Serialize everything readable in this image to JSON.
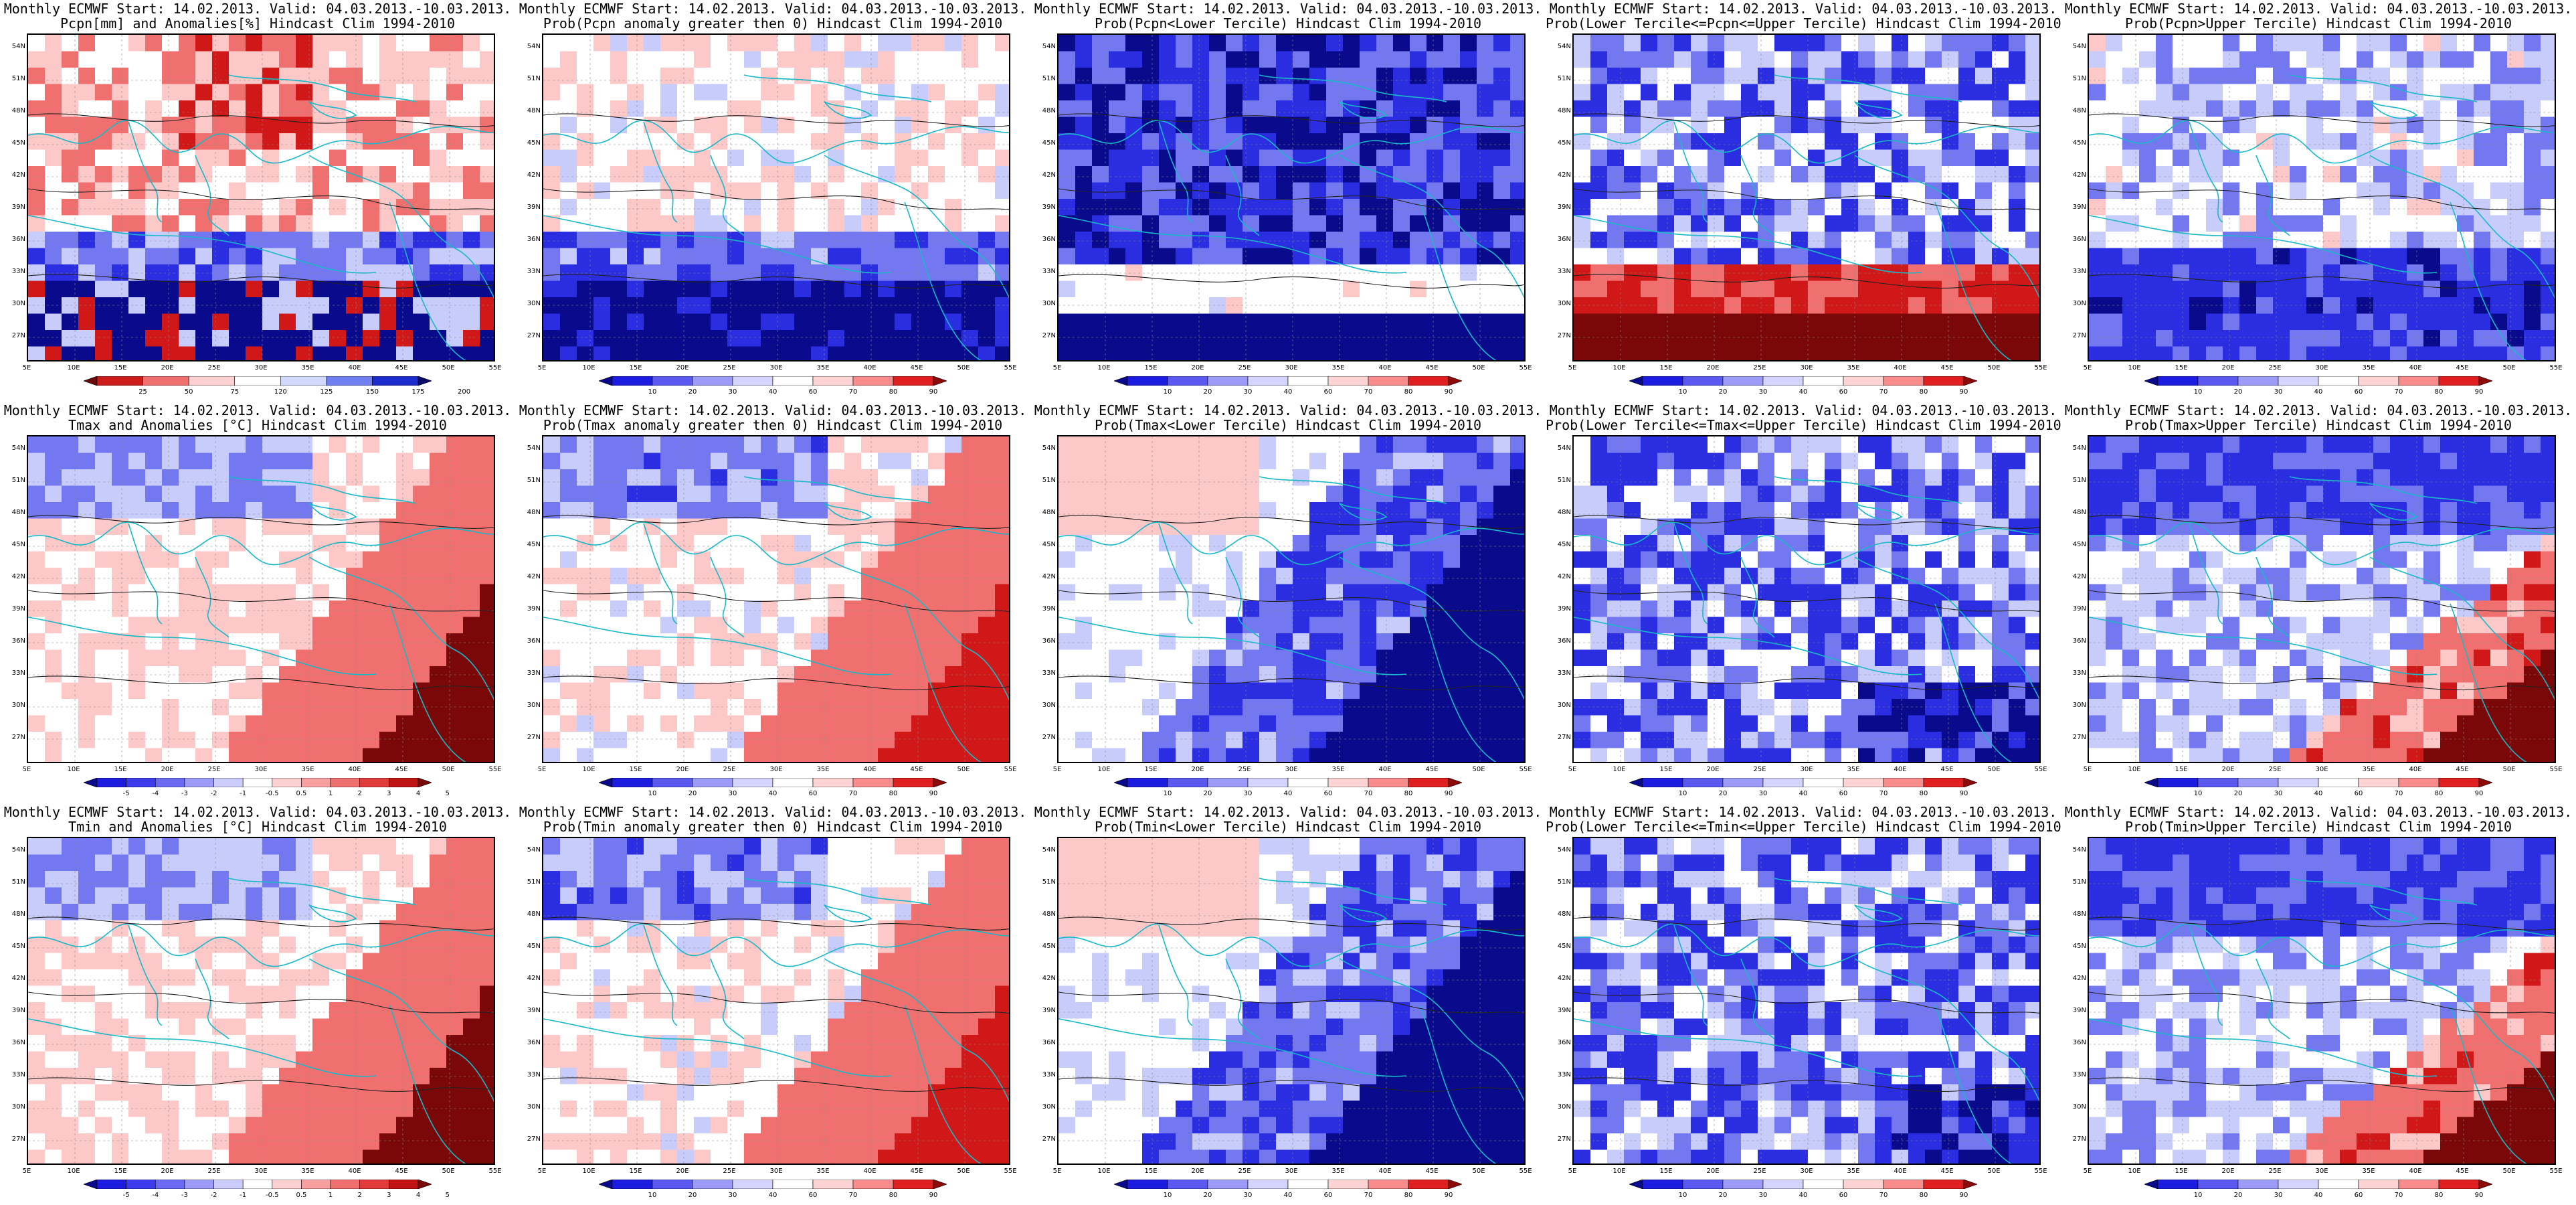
{
  "latitudes": [
    "54N",
    "51N",
    "48N",
    "45N",
    "42N",
    "39N",
    "36N",
    "33N",
    "30N",
    "27N"
  ],
  "longitudes": [
    "5E",
    "10E",
    "15E",
    "20E",
    "25E",
    "30E",
    "35E",
    "40E",
    "45E",
    "50E",
    "55E"
  ],
  "colorbars": {
    "pcpn_anom": {
      "labels": [
        "25",
        "50",
        "75",
        "120",
        "125",
        "150",
        "175",
        "200"
      ],
      "colors": [
        "#6b0a0a",
        "#cc1c1c",
        "#f07070",
        "#fcd0d0",
        "#ffffff",
        "#d0d8fc",
        "#7080f0",
        "#1c2ccc",
        "#0a0a6b"
      ]
    },
    "prob": {
      "labels": [
        "10",
        "20",
        "30",
        "40",
        "60",
        "70",
        "80",
        "90"
      ],
      "colors": [
        "#0a0a8c",
        "#1c1ce0",
        "#5a5af2",
        "#9c9cf8",
        "#d4d4fc",
        "#ffffff",
        "#fcd4d4",
        "#f88c8c",
        "#e02020",
        "#8c0a0a"
      ]
    },
    "temp_anom": {
      "labels": [
        "-5",
        "-4",
        "-3",
        "-2",
        "-1",
        "-0.5",
        "0.5",
        "1",
        "2",
        "3",
        "4",
        "5"
      ],
      "colors": [
        "#0a0a8c",
        "#1c1ce0",
        "#3c3cee",
        "#6a6af4",
        "#9c9cf8",
        "#ccccfc",
        "#ffffff",
        "#fcd0d0",
        "#f8a0a0",
        "#f07070",
        "#e03c3c",
        "#c01414",
        "#7a0808"
      ]
    }
  },
  "panels": [
    {
      "id": "p1",
      "l1": "Monthly ECMWF Start: 14.02.2013. Valid: 04.03.2013.-10.03.2013.",
      "l2": "Pcpn[mm] and Anomalies[%] Hindcast Clim 1994-2010",
      "scheme": "pcpn_anom",
      "cb": "pcpn_anom"
    },
    {
      "id": "p2",
      "l1": "Monthly ECMWF Start: 14.02.2013. Valid: 04.03.2013.-10.03.2013.",
      "l2": "Prob(Pcpn anomaly greater then 0) Hindcast Clim 1994-2010",
      "scheme": "pcpn_prob",
      "cb": "prob"
    },
    {
      "id": "p3",
      "l1": "Monthly ECMWF Start: 14.02.2013. Valid: 04.03.2013.-10.03.2013.",
      "l2": "Prob(Pcpn<Lower Tercile) Hindcast Clim 1994-2010",
      "scheme": "pcpn_lower",
      "cb": "prob"
    },
    {
      "id": "p4",
      "l1": "Monthly ECMWF Start: 14.02.2013. Valid: 04.03.2013.-10.03.2013.",
      "l2": "Prob(Lower Tercile<=Pcpn<=Upper Tercile) Hindcast Clim 1994-2010",
      "scheme": "pcpn_mid",
      "cb": "prob"
    },
    {
      "id": "p5",
      "l1": "Monthly ECMWF Start: 14.02.2013. Valid: 04.03.2013.-10.03.2013.",
      "l2": "Prob(Pcpn>Upper Tercile) Hindcast Clim 1994-2010",
      "scheme": "pcpn_upper",
      "cb": "prob"
    },
    {
      "id": "p6",
      "l1": "Monthly ECMWF Start: 14.02.2013. Valid: 04.03.2013.-10.03.2013.",
      "l2": "Tmax and Anomalies [°C] Hindcast Clim 1994-2010",
      "scheme": "warm_se",
      "cb": "temp_anom"
    },
    {
      "id": "p7",
      "l1": "Monthly ECMWF Start: 14.02.2013. Valid: 04.03.2013.-10.03.2013.",
      "l2": "Prob(Tmax anomaly greater then 0) Hindcast Clim 1994-2010",
      "scheme": "warm_se_prob",
      "cb": "prob"
    },
    {
      "id": "p8",
      "l1": "Monthly ECMWF Start: 14.02.2013. Valid: 04.03.2013.-10.03.2013.",
      "l2": "Prob(Tmax<Lower Tercile) Hindcast Clim 1994-2010",
      "scheme": "cold_se",
      "cb": "prob"
    },
    {
      "id": "p9",
      "l1": "Monthly ECMWF Start: 14.02.2013. Valid: 04.03.2013.-10.03.2013.",
      "l2": "Prob(Lower Tercile<=Tmax<=Upper Tercile) Hindcast Clim 1994-2010",
      "scheme": "mid_blue",
      "cb": "prob"
    },
    {
      "id": "p10",
      "l1": "Monthly ECMWF Start: 14.02.2013. Valid: 04.03.2013.-10.03.2013.",
      "l2": "Prob(Tmax>Upper Tercile) Hindcast Clim 1994-2010",
      "scheme": "upper_warm",
      "cb": "prob"
    },
    {
      "id": "p11",
      "l1": "Monthly ECMWF Start: 14.02.2013. Valid: 04.03.2013.-10.03.2013.",
      "l2": "Tmin and Anomalies [°C] Hindcast Clim 1994-2010",
      "scheme": "warm_se",
      "cb": "temp_anom"
    },
    {
      "id": "p12",
      "l1": "Monthly ECMWF Start: 14.02.2013. Valid: 04.03.2013.-10.03.2013.",
      "l2": "Prob(Tmin anomaly greater then 0) Hindcast Clim 1994-2010",
      "scheme": "warm_se_prob",
      "cb": "prob"
    },
    {
      "id": "p13",
      "l1": "Monthly ECMWF Start: 14.02.2013. Valid: 04.03.2013.-10.03.2013.",
      "l2": "Prob(Tmin<Lower Tercile) Hindcast Clim 1994-2010",
      "scheme": "cold_se",
      "cb": "prob"
    },
    {
      "id": "p14",
      "l1": "Monthly ECMWF Start: 14.02.2013. Valid: 04.03.2013.-10.03.2013.",
      "l2": "Prob(Lower Tercile<=Tmin<=Upper Tercile) Hindcast Clim 1994-2010",
      "scheme": "mid_blue",
      "cb": "prob"
    },
    {
      "id": "p15",
      "l1": "Monthly ECMWF Start: 14.02.2013. Valid: 04.03.2013.-10.03.2013.",
      "l2": "Prob(Tmin>Upper Tercile) Hindcast Clim 1994-2010",
      "scheme": "upper_warm",
      "cb": "prob"
    }
  ]
}
